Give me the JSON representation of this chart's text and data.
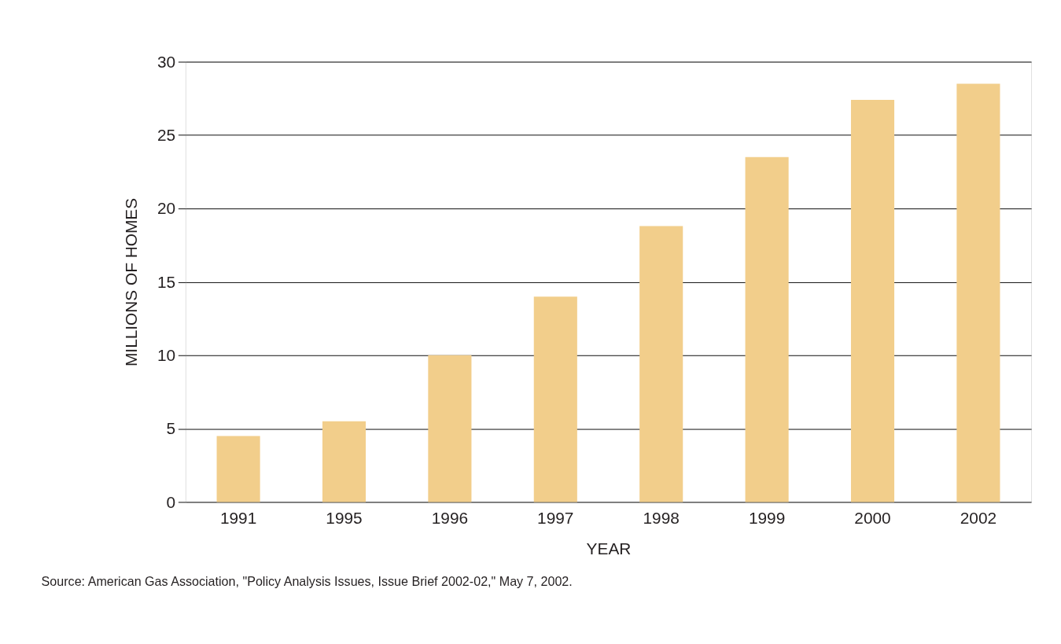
{
  "chart_data": {
    "type": "bar",
    "categories": [
      "1991",
      "1995",
      "1996",
      "1997",
      "1998",
      "1999",
      "2000",
      "2002"
    ],
    "values": [
      4.5,
      5.5,
      10.0,
      14.0,
      18.8,
      23.5,
      27.4,
      28.5
    ],
    "color": "#f2ce8b",
    "xlabel": "YEAR",
    "ylabel": "MILLIONS OF HOMES",
    "ylim": [
      0,
      30
    ],
    "yticks": [
      0,
      5,
      10,
      15,
      20,
      25,
      30
    ],
    "grid": "y",
    "annotations": [
      "Source:  American Gas Association, \"Policy Analysis Issues, Issue Brief 2002-02,\" May 7, 2002."
    ]
  }
}
